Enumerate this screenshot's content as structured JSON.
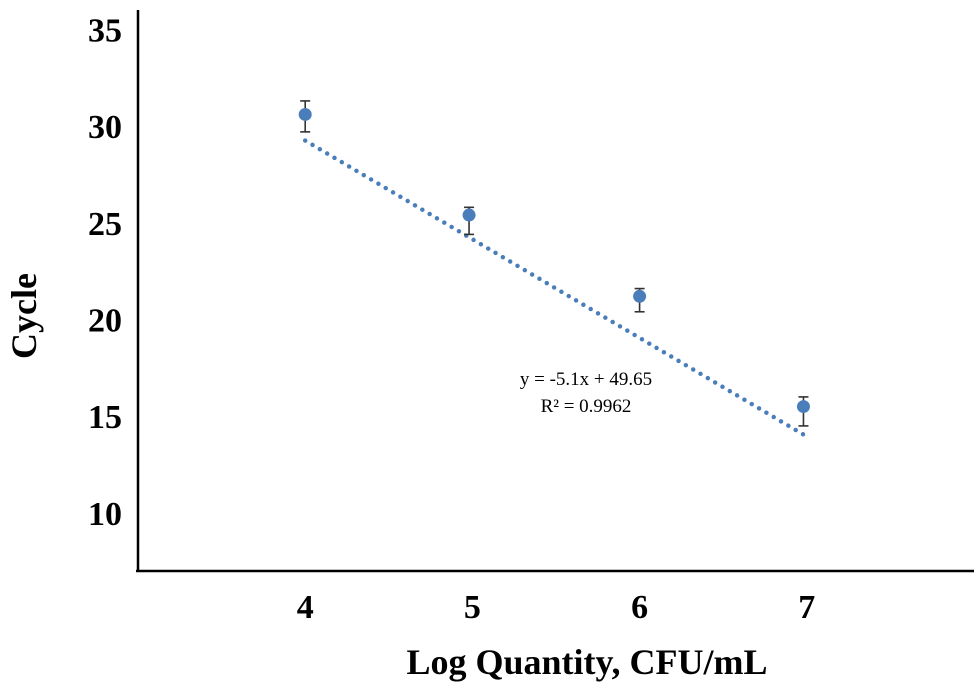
{
  "chart_data": {
    "type": "scatter",
    "title": "",
    "xlabel": "Log Quantity, CFU/mL",
    "ylabel": "Cycle",
    "xlim": [
      3,
      8
    ],
    "ylim": [
      7,
      36
    ],
    "x_ticks": [
      "4",
      "5",
      "6",
      "7"
    ],
    "y_ticks": [
      "10",
      "15",
      "20",
      "25",
      "30",
      "35"
    ],
    "grid": false,
    "series": [
      {
        "points": [
          {
            "x": 4.0,
            "y": 30.6,
            "err_low": 0.9,
            "err_high": 0.7
          },
          {
            "x": 4.98,
            "y": 25.4,
            "err_low": 1.0,
            "err_high": 0.4
          },
          {
            "x": 6.0,
            "y": 21.2,
            "err_low": 0.8,
            "err_high": 0.4
          },
          {
            "x": 6.98,
            "y": 15.5,
            "err_low": 1.0,
            "err_high": 0.5
          }
        ],
        "color": "#4a7ebb"
      }
    ],
    "trendline": {
      "style": "dotted",
      "slope": -5.1,
      "intercept": 49.65,
      "x_range": [
        4.0,
        6.98
      ],
      "color": "#4a7ebb"
    },
    "annotations": [
      "y = -5.1x + 49.65",
      "R² = 0.9962"
    ]
  }
}
